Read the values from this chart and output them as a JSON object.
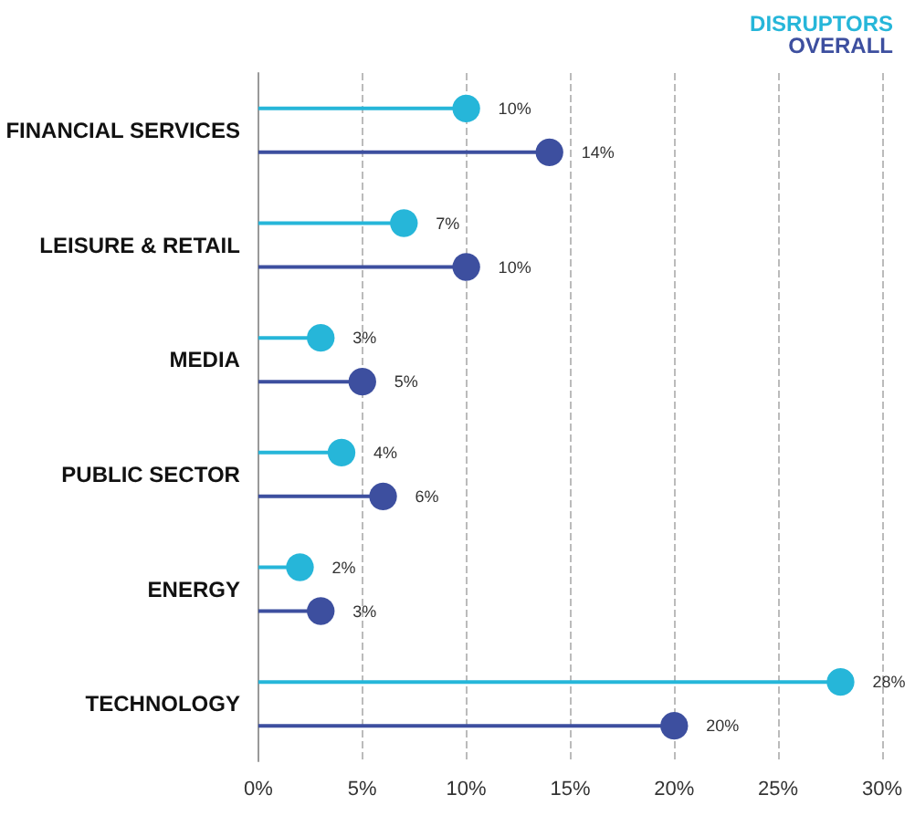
{
  "chart_data": {
    "type": "lollipop",
    "orientation": "horizontal",
    "categories": [
      "FINANCIAL SERVICES",
      "LEISURE & RETAIL",
      "MEDIA",
      "PUBLIC SECTOR",
      "ENERGY",
      "TECHNOLOGY"
    ],
    "series": [
      {
        "name": "DISRUPTORS",
        "color": "#26b6d9",
        "values": [
          10,
          7,
          3,
          4,
          2,
          28
        ],
        "value_labels": [
          "10%",
          "7%",
          "3%",
          "4%",
          "2%",
          "28%"
        ]
      },
      {
        "name": "OVERALL",
        "color": "#3d4f9f",
        "values": [
          14,
          10,
          5,
          6,
          3,
          20
        ],
        "value_labels": [
          "14%",
          "10%",
          "5%",
          "6%",
          "3%",
          "20%"
        ]
      }
    ],
    "xlim": [
      0,
      30
    ],
    "xticks": [
      {
        "value": 0,
        "label": "0%"
      },
      {
        "value": 5,
        "label": "5%"
      },
      {
        "value": 10,
        "label": "10%"
      },
      {
        "value": 15,
        "label": "15%"
      },
      {
        "value": 20,
        "label": "20%"
      },
      {
        "value": 25,
        "label": "25%"
      },
      {
        "value": 30,
        "label": "30%"
      }
    ],
    "grid": "x",
    "legend": "top right",
    "marker": "circle"
  }
}
